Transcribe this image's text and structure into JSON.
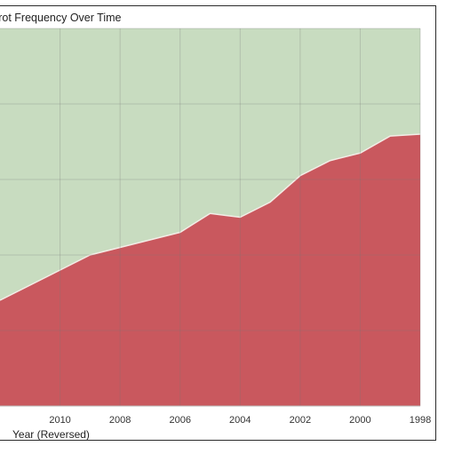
{
  "chart_data": {
    "type": "area",
    "title": "Pierrot Frequency Over Time",
    "xlabel": "Year (Reversed)",
    "ylabel": "",
    "x_reversed": true,
    "xlim": [
      2012,
      1998
    ],
    "ylim": [
      0,
      1
    ],
    "x_ticks": [
      2010,
      2008,
      2006,
      2004,
      2002,
      2000,
      1998
    ],
    "x_tick_labels": [
      "2010",
      "2008",
      "2006",
      "2004",
      "2002",
      "2000",
      "1998"
    ],
    "grid": true,
    "legend": "none",
    "x": [
      2010,
      2009,
      2008,
      2007,
      2006,
      2005,
      2004,
      2003,
      2002,
      2001,
      2000,
      1999,
      1998
    ],
    "series": [
      {
        "values": [
          0.36,
          0.4,
          0.42,
          0.44,
          0.46,
          0.51,
          0.5,
          0.54,
          0.61,
          0.65,
          0.67,
          0.715,
          0.72
        ],
        "color": "#c9585e"
      },
      {
        "values": [
          0.64,
          0.6,
          0.58,
          0.56,
          0.54,
          0.49,
          0.5,
          0.46,
          0.39,
          0.35,
          0.33,
          0.285,
          0.28
        ],
        "color": "#c8dcc0"
      }
    ]
  }
}
